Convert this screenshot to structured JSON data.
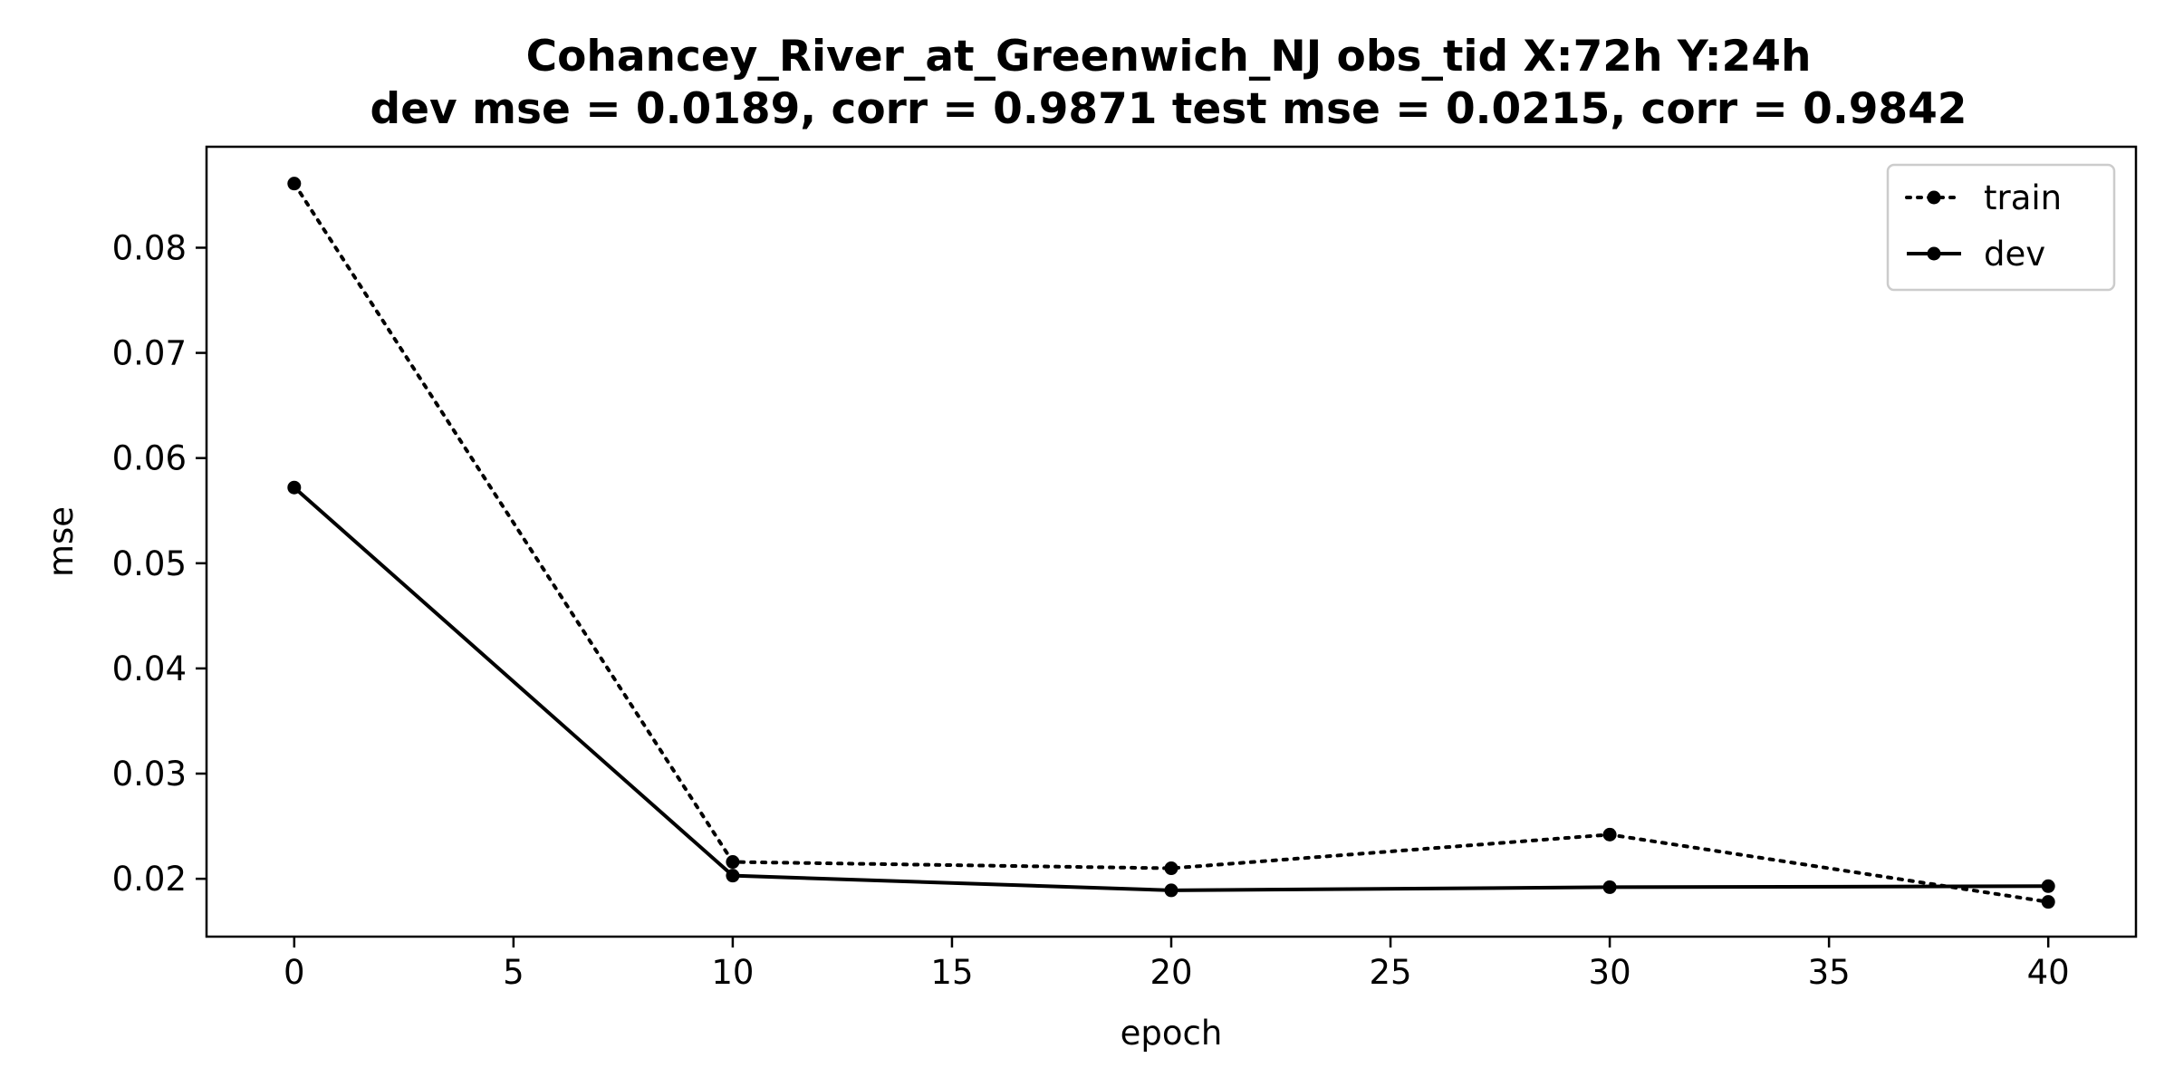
{
  "chart_data": {
    "type": "line",
    "title": "Cohancey_River_at_Greenwich_NJ   obs_tid   X:72h   Y:24h",
    "subtitle": "dev mse = 0.0189, corr = 0.9871   test mse = 0.0215, corr = 0.9842",
    "xlabel": "epoch",
    "ylabel": "mse",
    "xlim": [
      -2,
      42
    ],
    "ylim": [
      0.0145,
      0.0896
    ],
    "xticks": [
      0,
      5,
      10,
      15,
      20,
      25,
      30,
      35,
      40
    ],
    "xtick_labels": [
      "0",
      "5",
      "10",
      "15",
      "20",
      "25",
      "30",
      "35",
      "40"
    ],
    "yticks": [
      0.02,
      0.03,
      0.04,
      0.05,
      0.06,
      0.07,
      0.08
    ],
    "ytick_labels": [
      "0.02",
      "0.03",
      "0.04",
      "0.05",
      "0.06",
      "0.07",
      "0.08"
    ],
    "grid": false,
    "legend_position": "top-right",
    "x": [
      0,
      10,
      20,
      30,
      40
    ],
    "series": [
      {
        "name": "train",
        "values": [
          0.0861,
          0.0216,
          0.021,
          0.0242,
          0.0178
        ],
        "style": "dotted",
        "color": "#000000"
      },
      {
        "name": "dev",
        "values": [
          0.0572,
          0.0203,
          0.0189,
          0.0192,
          0.0193
        ],
        "style": "solid",
        "color": "#000000"
      }
    ]
  }
}
